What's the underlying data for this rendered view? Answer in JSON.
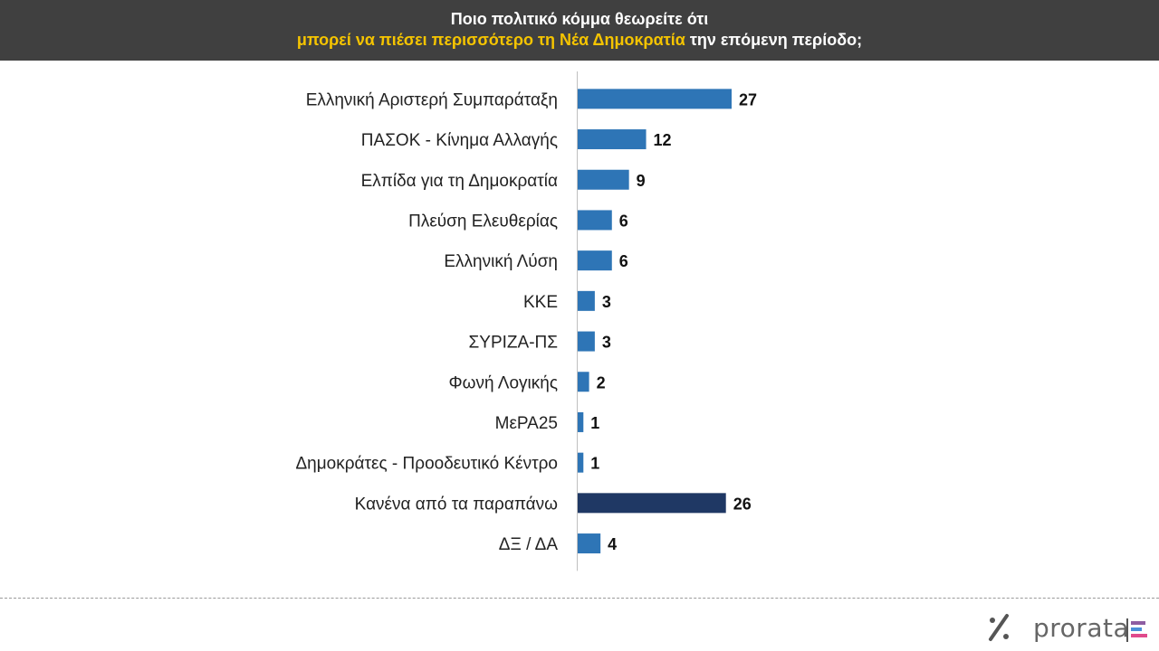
{
  "header": {
    "line1": "Ποιο πολιτικό κόμμα θεωρείτε ότι",
    "line2_highlight": "μπορεί να πιέσει περισσότερο τη Νέα Δημοκρατία",
    "line2_rest": " την επόμενη περίοδο;"
  },
  "chart_data": {
    "type": "bar",
    "orientation": "horizontal",
    "categories": [
      "Ελληνική Αριστερή Συμπαράταξη",
      "ΠΑΣΟΚ - Κίνημα Αλλαγής",
      "Ελπίδα για τη Δημοκρατία",
      "Πλεύση Ελευθερίας",
      "Ελληνική Λύση",
      "ΚΚΕ",
      "ΣΥΡΙΖΑ-ΠΣ",
      "Φωνή Λογικής",
      "ΜεΡΑ25",
      "Δημοκράτες - Προοδευτικό Κέντρο",
      "Κανένα από τα παραπάνω",
      "ΔΞ / ΔΑ"
    ],
    "values": [
      27,
      12,
      9,
      6,
      6,
      3,
      3,
      2,
      1,
      1,
      26,
      4
    ],
    "colors": [
      "#2e75b6",
      "#2e75b6",
      "#2e75b6",
      "#2e75b6",
      "#2e75b6",
      "#2e75b6",
      "#2e75b6",
      "#2e75b6",
      "#2e75b6",
      "#2e75b6",
      "#1f3864",
      "#2e75b6"
    ],
    "grid": false,
    "data_labels": true
  },
  "logo": {
    "text": "prorata",
    "icon": "percent-icon"
  }
}
